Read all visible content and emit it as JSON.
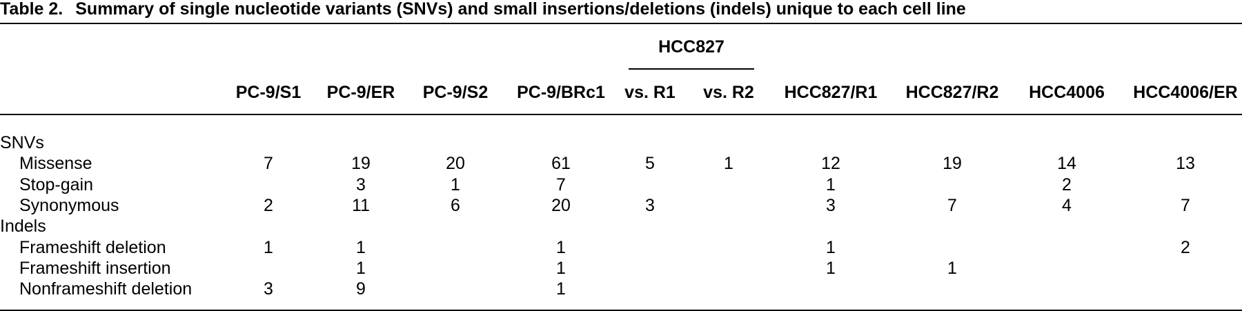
{
  "caption": {
    "label": "Table 2.",
    "title": "Summary of single nucleotide variants (SNVs) and small insertions/deletions (indels) unique to each cell line"
  },
  "header": {
    "group_label": "HCC827",
    "columns": [
      "PC-9/S1",
      "PC-9/ER",
      "PC-9/S2",
      "PC-9/BRc1",
      "vs. R1",
      "vs. R2",
      "HCC827/R1",
      "HCC827/R2",
      "HCC4006",
      "HCC4006/ER"
    ]
  },
  "rows": [
    {
      "label": "SNVs",
      "section": true,
      "values": [
        "",
        "",
        "",
        "",
        "",
        "",
        "",
        "",
        "",
        ""
      ]
    },
    {
      "label": "Missense",
      "section": false,
      "values": [
        "7",
        "19",
        "20",
        "61",
        "5",
        "1",
        "12",
        "19",
        "14",
        "13"
      ]
    },
    {
      "label": "Stop-gain",
      "section": false,
      "values": [
        "",
        "3",
        "1",
        "7",
        "",
        "",
        "1",
        "",
        "2",
        ""
      ]
    },
    {
      "label": "Synonymous",
      "section": false,
      "values": [
        "2",
        "11",
        "6",
        "20",
        "3",
        "",
        "3",
        "7",
        "4",
        "7"
      ]
    },
    {
      "label": "Indels",
      "section": true,
      "values": [
        "",
        "",
        "",
        "",
        "",
        "",
        "",
        "",
        "",
        ""
      ]
    },
    {
      "label": "Frameshift deletion",
      "section": false,
      "values": [
        "1",
        "1",
        "",
        "1",
        "",
        "",
        "1",
        "",
        "",
        "2"
      ]
    },
    {
      "label": "Frameshift insertion",
      "section": false,
      "values": [
        "",
        "1",
        "",
        "1",
        "",
        "",
        "1",
        "1",
        "",
        ""
      ]
    },
    {
      "label": "Nonframeshift deletion",
      "section": false,
      "values": [
        "3",
        "9",
        "",
        "1",
        "",
        "",
        "",
        "",
        "",
        ""
      ]
    }
  ]
}
